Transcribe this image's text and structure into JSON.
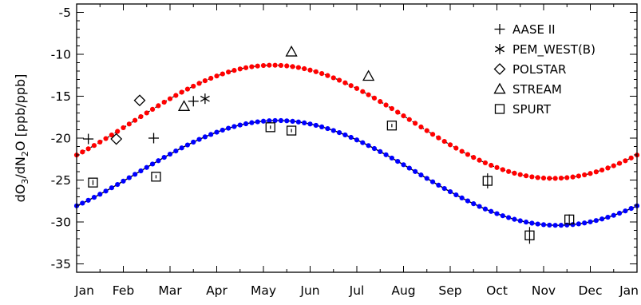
{
  "chart_data": {
    "type": "scatter",
    "title": "",
    "xlabel": "",
    "ylabel_parts": [
      "dO",
      "3",
      "/dN",
      "2",
      "O [ppb/ppb]"
    ],
    "x_axis": {
      "unit": "month",
      "range": [
        0,
        12
      ],
      "tick_labels": [
        "Jan",
        "Feb",
        "Mar",
        "Apr",
        "May",
        "Jun",
        "Jul",
        "Aug",
        "Sep",
        "Oct",
        "Nov",
        "Dec",
        "Jan"
      ],
      "tick_label_positions": [
        0,
        1,
        2,
        3,
        4,
        5,
        6,
        7,
        8,
        9,
        10,
        11,
        12
      ]
    },
    "y_axis": {
      "range": [
        -36,
        -4
      ],
      "ticks": [
        -35,
        -30,
        -25,
        -20,
        -15,
        -10,
        -5
      ],
      "tick_labels": [
        "-35",
        "-30",
        "-25",
        "-20",
        "-15",
        "-10",
        "-5"
      ]
    },
    "grid": false,
    "legend_placement": "top-right",
    "curves": [
      {
        "color": "#ff0000",
        "style": "dotted",
        "model": "sinusoid",
        "mean": -18.05,
        "amplitude": 6.75,
        "peak_month": 4.2,
        "x": [
          0,
          1,
          2,
          3,
          4,
          5,
          6,
          7,
          8,
          9,
          10,
          11,
          12
        ],
        "y": [
          -22.5,
          -18.3,
          -14.4,
          -12.2,
          -11.4,
          -11.7,
          -13.6,
          -17.4,
          -21.5,
          -24.0,
          -24.7,
          -23.9,
          -22.7
        ]
      },
      {
        "color": "#0000ff",
        "style": "solid with dots",
        "model": "sinusoid",
        "mean": -24.15,
        "amplitude": 6.25,
        "peak_month": 4.3,
        "x": [
          0,
          1,
          2,
          3,
          4,
          5,
          6,
          7,
          8,
          9,
          10,
          11,
          12
        ],
        "y": [
          -28.4,
          -24.9,
          -21.4,
          -19.0,
          -18.0,
          -18.3,
          -20.0,
          -23.2,
          -26.9,
          -29.4,
          -30.4,
          -29.9,
          -28.8
        ]
      }
    ],
    "series": [
      {
        "name": "AASE II",
        "marker": "plus-icon",
        "x": [
          0.25,
          1.65,
          2.5
        ],
        "y": [
          -20.1,
          -20.0,
          -15.6
        ],
        "yerr": [
          null,
          null,
          null
        ]
      },
      {
        "name": "PEM_WEST(B)",
        "marker": "asterisk-icon",
        "x": [
          2.75
        ],
        "y": [
          -15.3
        ],
        "yerr": [
          null
        ]
      },
      {
        "name": "POLSTAR",
        "marker": "diamond-icon",
        "x": [
          0.85,
          1.35
        ],
        "y": [
          -20.1,
          -15.5
        ],
        "yerr": [
          null,
          null
        ]
      },
      {
        "name": "STREAM",
        "marker": "triangle-icon",
        "x": [
          2.3,
          4.6,
          6.25
        ],
        "y": [
          -16.2,
          -9.7,
          -12.6
        ],
        "yerr": [
          null,
          null,
          null
        ]
      },
      {
        "name": "SPURT",
        "marker": "square-icon",
        "x": [
          0.35,
          1.7,
          4.15,
          4.6,
          6.75,
          8.8,
          9.7,
          10.55
        ],
        "y": [
          -25.3,
          -24.6,
          -18.7,
          -19.1,
          -18.5,
          -25.1,
          -31.6,
          -29.7
        ],
        "yerr": [
          0.3,
          0.2,
          0.2,
          0.2,
          0.2,
          0.9,
          1.0,
          0.6
        ]
      }
    ]
  }
}
